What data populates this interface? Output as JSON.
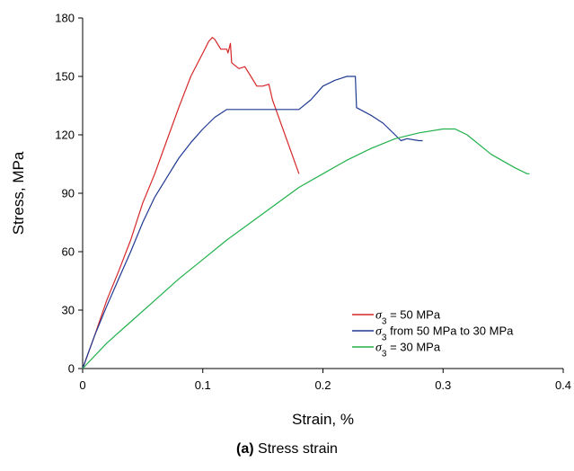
{
  "caption": {
    "label": "(a)",
    "text": " Stress strain"
  },
  "chart_data": {
    "type": "line",
    "xlabel": "Strain, %",
    "ylabel": "Stress, MPa",
    "xlim": [
      0,
      0.4
    ],
    "ylim": [
      0,
      180
    ],
    "xticks": [
      0,
      0.1,
      0.2,
      0.3,
      0.4
    ],
    "xtick_labels": [
      "0",
      "0.1",
      "0.2",
      "0.3",
      "0.4"
    ],
    "yticks": [
      0,
      30,
      60,
      90,
      120,
      150,
      180
    ],
    "ytick_labels": [
      "0",
      "30",
      "60",
      "90",
      "120",
      "150",
      "180"
    ],
    "grid": false,
    "legend_position": "bottom-right",
    "series": [
      {
        "name": "σ3 = 50 MPa",
        "legend_symbol": "σ",
        "legend_sub": "3",
        "legend_rest": " = 50 MPa",
        "color": "#d62728",
        "x": [
          0,
          0.01,
          0.02,
          0.03,
          0.04,
          0.05,
          0.06,
          0.07,
          0.08,
          0.09,
          0.1,
          0.105,
          0.108,
          0.11,
          0.115,
          0.12,
          0.121,
          0.123,
          0.124,
          0.13,
          0.135,
          0.14,
          0.145,
          0.15,
          0.155,
          0.158,
          0.18
        ],
        "y": [
          0,
          17,
          35,
          50,
          66,
          85,
          100,
          117,
          134,
          150,
          162,
          168,
          170,
          169,
          164,
          164,
          162,
          167,
          157,
          154,
          155,
          150,
          145,
          145,
          146,
          138,
          100
        ]
      },
      {
        "name": "σ3 from 50 MPa to 30 MPa",
        "legend_symbol": "σ",
        "legend_sub": "3",
        "legend_rest": " from 50 MPa to 30 MPa",
        "color": "#1f3a93",
        "x": [
          0,
          0.01,
          0.02,
          0.03,
          0.04,
          0.05,
          0.06,
          0.07,
          0.08,
          0.09,
          0.1,
          0.11,
          0.12,
          0.18,
          0.19,
          0.2,
          0.21,
          0.22,
          0.227,
          0.228,
          0.24,
          0.25,
          0.26,
          0.265,
          0.27,
          0.28,
          0.283
        ],
        "y": [
          0,
          17,
          32,
          46,
          60,
          75,
          88,
          98,
          108,
          116,
          123,
          129,
          133,
          133,
          138,
          145,
          148,
          150,
          150,
          134,
          130,
          126,
          120,
          117,
          118,
          117,
          117
        ]
      },
      {
        "name": "σ3 = 30 MPa",
        "legend_symbol": "σ",
        "legend_sub": "3",
        "legend_rest": " = 30 MPa",
        "color": "#22b14c",
        "x": [
          0,
          0.02,
          0.04,
          0.06,
          0.08,
          0.1,
          0.12,
          0.14,
          0.16,
          0.18,
          0.2,
          0.22,
          0.24,
          0.26,
          0.28,
          0.3,
          0.31,
          0.32,
          0.34,
          0.36,
          0.37,
          0.372
        ],
        "y": [
          0,
          13,
          24,
          35,
          46,
          56,
          66,
          75,
          84,
          93,
          100,
          107,
          113,
          118,
          121,
          123,
          123,
          120,
          110,
          103,
          100,
          100
        ]
      }
    ]
  }
}
